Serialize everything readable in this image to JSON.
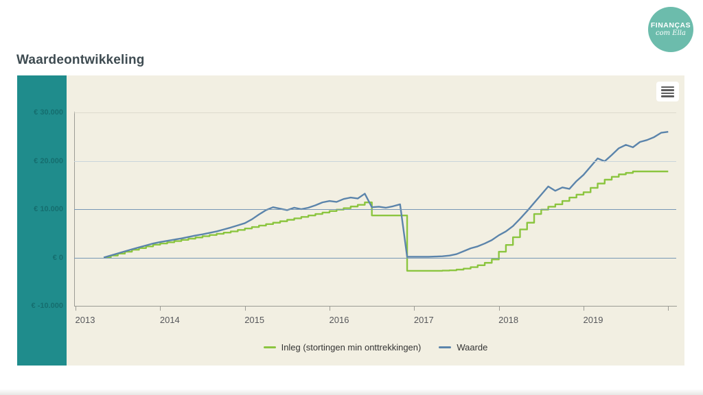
{
  "page": {
    "heading": "Waardeontwikkeling"
  },
  "logo": {
    "line1": "FINANÇAS",
    "line2": "com Ella",
    "bg_color": "#6cbcac"
  },
  "icons": {
    "context_menu": "hamburger-menu-icon"
  },
  "panel": {
    "teal_color": "#1f8c8c",
    "background_color": "#f2efe2"
  },
  "axes": {
    "y_ticks": [
      {
        "value": 30000,
        "label": "€ 30.000",
        "grid_color": "#dcdacd"
      },
      {
        "value": 20000,
        "label": "€ 20.000",
        "grid_color": "#c9d4da"
      },
      {
        "value": 10000,
        "label": "€ 10.000",
        "grid_color": "#7596b4"
      },
      {
        "value": 0,
        "label": "€ 0",
        "grid_color": "#7596b4"
      },
      {
        "value": -10000,
        "label": "€ -10.000",
        "grid_color": "axis"
      }
    ],
    "x_ticks": [
      {
        "year": 2013,
        "label": "2013"
      },
      {
        "year": 2014,
        "label": "2014"
      },
      {
        "year": 2015,
        "label": "2015"
      },
      {
        "year": 2016,
        "label": "2016"
      },
      {
        "year": 2017,
        "label": "2017"
      },
      {
        "year": 2018,
        "label": "2018"
      },
      {
        "year": 2019,
        "label": "2019"
      },
      {
        "year": 2020,
        "label": ""
      }
    ]
  },
  "chart_data": {
    "type": "line",
    "title": "Waardeontwikkeling",
    "xlabel": "",
    "ylabel": "€",
    "ylim": [
      -10000,
      30000
    ],
    "xlim": [
      2013,
      2020.1
    ],
    "grid": true,
    "legend_position": "bottom-center",
    "x_start_year_decimal": 2013.3333,
    "x_step_years": 0.0833333,
    "x_note": "monthly points from May 2013 through Jan 2020; values in euros, read from gridlines",
    "series": [
      {
        "name": "Inleg (stortingen min onttrekkingen)",
        "color": "#8bc53f",
        "step": true,
        "values": [
          0,
          400,
          800,
          1200,
          1600,
          1950,
          2300,
          2650,
          2900,
          3150,
          3400,
          3650,
          3900,
          4150,
          4400,
          4650,
          4900,
          5150,
          5400,
          5700,
          6000,
          6300,
          6600,
          6900,
          7200,
          7500,
          7800,
          8100,
          8400,
          8700,
          9000,
          9300,
          9600,
          9900,
          10200,
          10550,
          10900,
          11400,
          8700,
          8700,
          8700,
          8700,
          8700,
          -2750,
          -2750,
          -2750,
          -2750,
          -2750,
          -2700,
          -2650,
          -2500,
          -2300,
          -2000,
          -1600,
          -1100,
          -400,
          1200,
          2600,
          4200,
          5800,
          7200,
          9000,
          9900,
          10500,
          11000,
          11700,
          12400,
          13000,
          13500,
          14400,
          15300,
          16100,
          16700,
          17200,
          17500,
          17800,
          17800,
          17800,
          17800,
          17800,
          17800
        ]
      },
      {
        "name": "Waarde",
        "color": "#5b84ab",
        "step": false,
        "values": [
          0,
          420,
          850,
          1280,
          1700,
          2100,
          2500,
          2900,
          3200,
          3450,
          3700,
          3950,
          4250,
          4550,
          4800,
          5100,
          5400,
          5800,
          6200,
          6650,
          7100,
          7900,
          8900,
          9800,
          10400,
          10100,
          9800,
          10300,
          10000,
          10300,
          10800,
          11400,
          11700,
          11500,
          12100,
          12400,
          12200,
          13200,
          10400,
          10500,
          10300,
          10600,
          11000,
          150,
          150,
          150,
          150,
          200,
          250,
          400,
          700,
          1300,
          1900,
          2300,
          2900,
          3600,
          4600,
          5400,
          6500,
          8000,
          9600,
          11300,
          13000,
          14700,
          13800,
          14500,
          14200,
          15800,
          17100,
          18800,
          20500,
          19900,
          21200,
          22600,
          23300,
          22800,
          23900,
          24300,
          24900,
          25800,
          26000
        ]
      }
    ]
  }
}
